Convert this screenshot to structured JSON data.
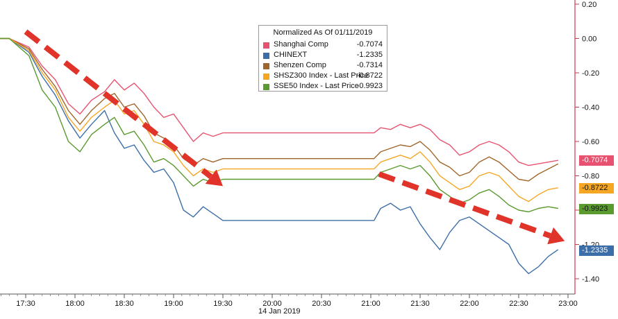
{
  "chart_data": {
    "type": "line",
    "x_tick_labels": [
      "17:30",
      "18:00",
      "18:30",
      "19:00",
      "19:30",
      "20:00",
      "20:30",
      "21:00",
      "21:30",
      "22:00",
      "22:30",
      "23:00"
    ],
    "x_minutes": [
      1050,
      1080,
      1110,
      1140,
      1170,
      1200,
      1230,
      1260,
      1290,
      1320,
      1350,
      1380
    ],
    "date_label": "14 Jan 2019",
    "y_tick_labels": [
      "0.20",
      "0.00",
      "-0.20",
      "-0.40",
      "-0.60",
      "-0.80",
      "-1.00",
      "-1.20",
      "-1.40"
    ],
    "y_ticks": [
      0.2,
      0,
      -0.2,
      -0.4,
      -0.6,
      -0.8,
      -1.0,
      -1.2,
      -1.4
    ],
    "ylim": [
      -1.55,
      0.22
    ],
    "legend_title": "Normalized As Of 01/11/2019",
    "series": [
      {
        "name": "Shanghai Comp",
        "color": "#e8516f",
        "last": "-0.7074",
        "points": [
          [
            1030,
            0.0
          ],
          [
            1040,
            0.0
          ],
          [
            1052,
            -0.05
          ],
          [
            1060,
            -0.16
          ],
          [
            1068,
            -0.24
          ],
          [
            1076,
            -0.38
          ],
          [
            1083,
            -0.44
          ],
          [
            1090,
            -0.36
          ],
          [
            1098,
            -0.31
          ],
          [
            1104,
            -0.24
          ],
          [
            1110,
            -0.3
          ],
          [
            1116,
            -0.26
          ],
          [
            1122,
            -0.32
          ],
          [
            1128,
            -0.4
          ],
          [
            1134,
            -0.46
          ],
          [
            1140,
            -0.44
          ],
          [
            1146,
            -0.52
          ],
          [
            1152,
            -0.6
          ],
          [
            1158,
            -0.55
          ],
          [
            1164,
            -0.57
          ],
          [
            1170,
            -0.55
          ],
          [
            1172,
            -0.55
          ],
          [
            1260,
            -0.55
          ],
          [
            1262,
            -0.55
          ],
          [
            1266,
            -0.52
          ],
          [
            1272,
            -0.53
          ],
          [
            1278,
            -0.5
          ],
          [
            1284,
            -0.52
          ],
          [
            1290,
            -0.5
          ],
          [
            1296,
            -0.53
          ],
          [
            1302,
            -0.59
          ],
          [
            1308,
            -0.62
          ],
          [
            1314,
            -0.68
          ],
          [
            1320,
            -0.66
          ],
          [
            1326,
            -0.62
          ],
          [
            1332,
            -0.6
          ],
          [
            1338,
            -0.62
          ],
          [
            1344,
            -0.66
          ],
          [
            1350,
            -0.72
          ],
          [
            1356,
            -0.74
          ],
          [
            1362,
            -0.73
          ],
          [
            1368,
            -0.72
          ],
          [
            1374,
            -0.71
          ]
        ]
      },
      {
        "name": "CHINEXT",
        "color": "#3b6ea8",
        "last": "-1.2335",
        "points": [
          [
            1030,
            0.0
          ],
          [
            1040,
            0.0
          ],
          [
            1052,
            -0.08
          ],
          [
            1060,
            -0.22
          ],
          [
            1068,
            -0.33
          ],
          [
            1076,
            -0.48
          ],
          [
            1083,
            -0.58
          ],
          [
            1090,
            -0.5
          ],
          [
            1098,
            -0.42
          ],
          [
            1104,
            -0.55
          ],
          [
            1110,
            -0.64
          ],
          [
            1116,
            -0.62
          ],
          [
            1122,
            -0.71
          ],
          [
            1128,
            -0.78
          ],
          [
            1134,
            -0.76
          ],
          [
            1140,
            -0.84
          ],
          [
            1146,
            -1.0
          ],
          [
            1152,
            -1.04
          ],
          [
            1158,
            -0.98
          ],
          [
            1164,
            -1.02
          ],
          [
            1170,
            -1.06
          ],
          [
            1172,
            -1.06
          ],
          [
            1260,
            -1.06
          ],
          [
            1262,
            -1.06
          ],
          [
            1266,
            -0.99
          ],
          [
            1272,
            -0.96
          ],
          [
            1278,
            -1.0
          ],
          [
            1284,
            -0.98
          ],
          [
            1290,
            -1.08
          ],
          [
            1296,
            -1.16
          ],
          [
            1302,
            -1.23
          ],
          [
            1308,
            -1.13
          ],
          [
            1314,
            -1.06
          ],
          [
            1320,
            -1.04
          ],
          [
            1326,
            -1.08
          ],
          [
            1332,
            -1.12
          ],
          [
            1338,
            -1.16
          ],
          [
            1344,
            -1.2
          ],
          [
            1350,
            -1.31
          ],
          [
            1356,
            -1.37
          ],
          [
            1362,
            -1.33
          ],
          [
            1368,
            -1.27
          ],
          [
            1374,
            -1.23
          ]
        ]
      },
      {
        "name": "Shenzen Comp",
        "color": "#a0652a",
        "last": "-0.7314",
        "points": [
          [
            1030,
            0.0
          ],
          [
            1040,
            0.0
          ],
          [
            1052,
            -0.06
          ],
          [
            1060,
            -0.18
          ],
          [
            1068,
            -0.28
          ],
          [
            1076,
            -0.42
          ],
          [
            1083,
            -0.5
          ],
          [
            1090,
            -0.42
          ],
          [
            1098,
            -0.35
          ],
          [
            1104,
            -0.32
          ],
          [
            1110,
            -0.4
          ],
          [
            1116,
            -0.38
          ],
          [
            1122,
            -0.45
          ],
          [
            1128,
            -0.55
          ],
          [
            1134,
            -0.58
          ],
          [
            1140,
            -0.62
          ],
          [
            1146,
            -0.7
          ],
          [
            1152,
            -0.74
          ],
          [
            1158,
            -0.7
          ],
          [
            1164,
            -0.72
          ],
          [
            1170,
            -0.7
          ],
          [
            1172,
            -0.7
          ],
          [
            1260,
            -0.7
          ],
          [
            1262,
            -0.7
          ],
          [
            1266,
            -0.66
          ],
          [
            1272,
            -0.64
          ],
          [
            1278,
            -0.62
          ],
          [
            1284,
            -0.63
          ],
          [
            1290,
            -0.6
          ],
          [
            1296,
            -0.65
          ],
          [
            1302,
            -0.72
          ],
          [
            1308,
            -0.75
          ],
          [
            1314,
            -0.8
          ],
          [
            1320,
            -0.78
          ],
          [
            1326,
            -0.72
          ],
          [
            1332,
            -0.69
          ],
          [
            1338,
            -0.72
          ],
          [
            1344,
            -0.77
          ],
          [
            1350,
            -0.82
          ],
          [
            1356,
            -0.83
          ],
          [
            1362,
            -0.79
          ],
          [
            1368,
            -0.76
          ],
          [
            1374,
            -0.73
          ]
        ]
      },
      {
        "name": "SHSZ300 Index - Last Price",
        "color": "#f5a623",
        "last": "-0.8722",
        "points": [
          [
            1030,
            0.0
          ],
          [
            1040,
            0.0
          ],
          [
            1052,
            -0.07
          ],
          [
            1060,
            -0.2
          ],
          [
            1068,
            -0.3
          ],
          [
            1076,
            -0.46
          ],
          [
            1083,
            -0.54
          ],
          [
            1090,
            -0.46
          ],
          [
            1098,
            -0.4
          ],
          [
            1104,
            -0.36
          ],
          [
            1110,
            -0.44
          ],
          [
            1116,
            -0.42
          ],
          [
            1122,
            -0.5
          ],
          [
            1128,
            -0.6
          ],
          [
            1134,
            -0.62
          ],
          [
            1140,
            -0.66
          ],
          [
            1146,
            -0.74
          ],
          [
            1152,
            -0.8
          ],
          [
            1158,
            -0.76
          ],
          [
            1164,
            -0.78
          ],
          [
            1170,
            -0.76
          ],
          [
            1172,
            -0.76
          ],
          [
            1260,
            -0.76
          ],
          [
            1262,
            -0.76
          ],
          [
            1266,
            -0.72
          ],
          [
            1272,
            -0.7
          ],
          [
            1278,
            -0.68
          ],
          [
            1284,
            -0.7
          ],
          [
            1290,
            -0.66
          ],
          [
            1296,
            -0.72
          ],
          [
            1302,
            -0.8
          ],
          [
            1308,
            -0.84
          ],
          [
            1314,
            -0.88
          ],
          [
            1320,
            -0.86
          ],
          [
            1326,
            -0.8
          ],
          [
            1332,
            -0.78
          ],
          [
            1338,
            -0.8
          ],
          [
            1344,
            -0.86
          ],
          [
            1350,
            -0.92
          ],
          [
            1356,
            -0.95
          ],
          [
            1362,
            -0.91
          ],
          [
            1368,
            -0.88
          ],
          [
            1374,
            -0.87
          ]
        ]
      },
      {
        "name": "SSE50 Index - Last Price",
        "color": "#5a9a2e",
        "last": "-0.9923",
        "points": [
          [
            1030,
            0.0
          ],
          [
            1040,
            0.0
          ],
          [
            1052,
            -0.1
          ],
          [
            1060,
            -0.3
          ],
          [
            1068,
            -0.4
          ],
          [
            1076,
            -0.6
          ],
          [
            1083,
            -0.66
          ],
          [
            1090,
            -0.56
          ],
          [
            1098,
            -0.5
          ],
          [
            1104,
            -0.46
          ],
          [
            1110,
            -0.56
          ],
          [
            1116,
            -0.54
          ],
          [
            1122,
            -0.62
          ],
          [
            1128,
            -0.72
          ],
          [
            1134,
            -0.7
          ],
          [
            1140,
            -0.74
          ],
          [
            1146,
            -0.8
          ],
          [
            1152,
            -0.86
          ],
          [
            1158,
            -0.82
          ],
          [
            1164,
            -0.84
          ],
          [
            1170,
            -0.82
          ],
          [
            1172,
            -0.82
          ],
          [
            1260,
            -0.82
          ],
          [
            1262,
            -0.82
          ],
          [
            1266,
            -0.78
          ],
          [
            1272,
            -0.76
          ],
          [
            1278,
            -0.74
          ],
          [
            1284,
            -0.76
          ],
          [
            1290,
            -0.74
          ],
          [
            1296,
            -0.8
          ],
          [
            1302,
            -0.88
          ],
          [
            1308,
            -0.92
          ],
          [
            1314,
            -0.96
          ],
          [
            1320,
            -0.94
          ],
          [
            1326,
            -0.9
          ],
          [
            1332,
            -0.88
          ],
          [
            1338,
            -0.92
          ],
          [
            1344,
            -0.97
          ],
          [
            1350,
            -1.0
          ],
          [
            1356,
            -1.01
          ],
          [
            1362,
            -0.99
          ],
          [
            1368,
            -0.98
          ],
          [
            1374,
            -0.99
          ]
        ]
      }
    ],
    "annotations": [
      {
        "type": "arrow",
        "color": "#e0332a",
        "from": [
          1050,
          0.04
        ],
        "to": [
          1170,
          -0.86
        ]
      },
      {
        "type": "arrow",
        "color": "#e0332a",
        "from": [
          1265,
          -0.79
        ],
        "to": [
          1378,
          -1.18
        ]
      }
    ],
    "grid": false,
    "legend_placement": "top-center"
  }
}
